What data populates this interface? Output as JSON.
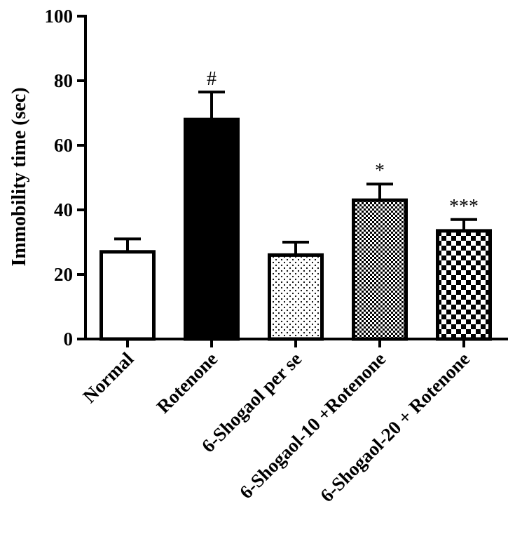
{
  "chart_data": {
    "type": "bar",
    "title": "",
    "xlabel": "",
    "ylabel": "Immobility time (sec)",
    "ylim": [
      0,
      100
    ],
    "yticks": [
      "0",
      "20",
      "40",
      "60",
      "80",
      "100"
    ],
    "categories": [
      "Normal",
      "Rotenone",
      "6-Shogaol per se",
      "6-Shogaol-10 +Rotenone",
      "6-Shogaol-20 + Rotenone"
    ],
    "values": [
      27,
      68,
      26,
      43,
      33.5
    ],
    "errors": [
      4,
      8.5,
      4,
      5,
      3.5
    ],
    "significance": [
      "",
      "#",
      "",
      "*",
      "***"
    ],
    "fills": [
      "white",
      "black",
      "dots",
      "fine-checker",
      "coarse-checker"
    ],
    "grid": false,
    "legend": "none"
  }
}
